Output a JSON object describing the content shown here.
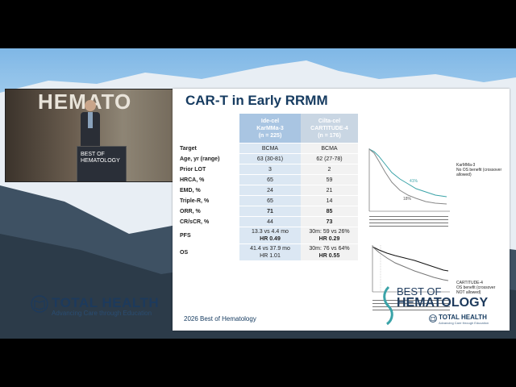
{
  "slide": {
    "title": "CAR-T in Early RRMM",
    "table": {
      "col1_header": "Ide-cel\nKarMMa-3\n(n = 225)",
      "col2_header": "Cilta-cel\nCARTITUDE-4\n(n = 176)",
      "rows": [
        {
          "label": "Target",
          "a": "BCMA",
          "b": "BCMA"
        },
        {
          "label": "Age, yr (range)",
          "a": "63 (30-81)",
          "b": "62 (27-78)"
        },
        {
          "label": "Prior LOT",
          "a": "3",
          "b": "2"
        },
        {
          "label": "HRCA, %",
          "a": "65",
          "b": "59"
        },
        {
          "label": "EMD, %",
          "a": "24",
          "b": "21"
        },
        {
          "label": "Triple-R, %",
          "a": "65",
          "b": "14"
        },
        {
          "label": "ORR, %",
          "a": "71",
          "b": "85"
        },
        {
          "label": "CR/sCR, %",
          "a": "44",
          "b": "73"
        },
        {
          "label": "PFS",
          "a1": "13.3 vs 4.4 mo",
          "a2": "HR 0.49",
          "b1": "30m: 59 vs 26%",
          "b2": "HR 0.29"
        },
        {
          "label": "OS",
          "a1": "41.4 vs 37.9 mo",
          "a2": "HR 1.01",
          "b1": "30m: 76 vs 64%",
          "b2": "HR 0.55"
        }
      ]
    },
    "km1": {
      "name": "KarMMa-3",
      "note": "No OS benefit (crossover allowed)",
      "pct_a": "41%",
      "pct_b": "18%"
    },
    "km2": {
      "name": "CARTITUDE-4",
      "note": "OS benefit (crossover NOT allowed)"
    },
    "footer": "2026 Best of Hematology",
    "logo_small": {
      "name": "TOTAL HEALTH",
      "tagline": "Advancing Care through Education"
    }
  },
  "overlay": {
    "brand_left": {
      "name": "TOTAL HEALTH",
      "tagline": "Advancing Care through Education"
    },
    "brand_right": {
      "line1": "BEST OF",
      "line2": "HEMATOLOGY"
    },
    "podium_logo": "BEST OF\nHEMATOLOGY",
    "backdrop_text": "HEMATO"
  },
  "colors": {
    "navy": "#173c61",
    "accent_teal": "#3aa3a8",
    "header_blue": "#a9c5e2"
  }
}
